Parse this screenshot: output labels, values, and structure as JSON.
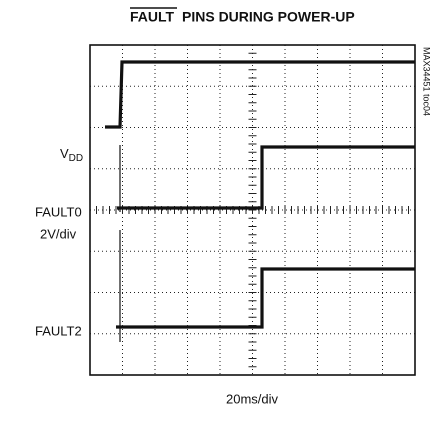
{
  "title_overlined": "FAULT",
  "title_rest": "PINS DURING POWER-UP",
  "channels": [
    {
      "label": "V",
      "subscript": "DD"
    },
    {
      "label": "FAULT0"
    },
    {
      "label": "FAULT2"
    }
  ],
  "vertical_scale": "2V/div",
  "horizontal_scale": "20ms/div",
  "figure_id": "MAX34451 toc04"
}
